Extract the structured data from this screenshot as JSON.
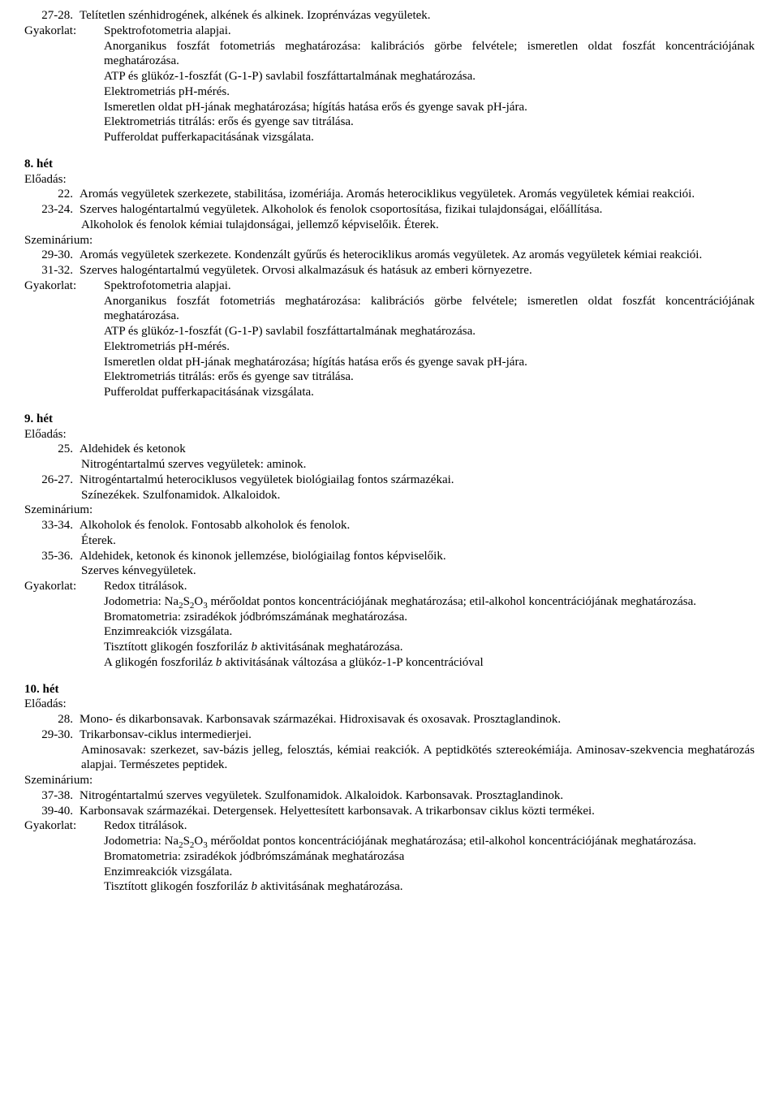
{
  "top": {
    "n27_28": "27-28.",
    "t27_28": "Telítetlen szénhidrogének, alkének és alkinek. Izoprénvázas vegyületek.",
    "gyak_label": "Gyakorlat:",
    "g1": "Spektrofotometria alapjai.",
    "g2": "Anorganikus foszfát fotometriás meghatározása: kalibrációs görbe felvétele; ismeretlen oldat foszfát koncentrációjának meghatározása.",
    "g3": "ATP és glükóz-1-foszfát (G-1-P) savlabil foszfáttartalmának meghatározása.",
    "g4": "Elektrometriás pH-mérés.",
    "g5": "Ismeretlen oldat pH-jának meghatározása; hígítás hatása erős és gyenge savak pH-jára.",
    "g6": "Elektrometriás titrálás: erős és gyenge sav titrálása.",
    "g7": "Pufferoldat pufferkapacitásának vizsgálata."
  },
  "w8": {
    "title": "8. hét",
    "eloadas": "Előadás:",
    "n22": "22.",
    "t22": "Aromás vegyületek szerkezete, stabilitása, izomériája. Aromás heterociklikus vegyületek. Aromás vegyületek kémiai reakciói.",
    "n23_24": "23-24.",
    "t23_24a": "Szerves halogéntartalmú vegyületek. Alkoholok és fenolok csoportosítása, fizikai tulajdonságai, előállítása.",
    "t23_24b": "Alkoholok és fenolok kémiai tulajdonságai, jellemző képviselőik. Éterek.",
    "szem": "Szeminárium:",
    "n29_30": "29-30.",
    "t29_30": "Aromás vegyületek szerkezete. Kondenzált gyűrűs és heterociklikus aromás vegyületek. Az aromás vegyületek kémiai reakciói.",
    "n31_32": "31-32.",
    "t31_32": "Szerves halogéntartalmú vegyületek. Orvosi alkalmazásuk és hatásuk az emberi környezetre.",
    "gyak_label": "Gyakorlat:",
    "g1": "Spektrofotometria alapjai.",
    "g2": "Anorganikus foszfát fotometriás meghatározása: kalibrációs görbe felvétele; ismeretlen oldat foszfát koncentrációjának meghatározása.",
    "g3": "ATP és glükóz-1-foszfát (G-1-P) savlabil foszfáttartalmának meghatározása.",
    "g4": "Elektrometriás pH-mérés.",
    "g5": "Ismeretlen oldat pH-jának meghatározása; hígítás hatása erős és gyenge savak pH-jára.",
    "g6": "Elektrometriás titrálás: erős és gyenge sav titrálása.",
    "g7": "Pufferoldat pufferkapacitásának vizsgálata."
  },
  "w9": {
    "title": "9. hét",
    "eloadas": "Előadás:",
    "n25": "25.",
    "t25a": "Aldehidek és ketonok",
    "t25b": "Nitrogéntartalmú szerves vegyületek: aminok.",
    "n26_27": "26-27.",
    "t26_27a": "Nitrogéntartalmú heterociklusos vegyületek biológiailag fontos származékai.",
    "t26_27b": "Színezékek. Szulfonamidok. Alkaloidok.",
    "szem": "Szeminárium:",
    "n33_34": "33-34.",
    "t33_34a": "Alkoholok és fenolok. Fontosabb alkoholok és fenolok.",
    "t33_34b": "Éterek.",
    "n35_36": "35-36.",
    "t35_36a": "Aldehidek, ketonok és kinonok jellemzése, biológiailag fontos képviselőik.",
    "t35_36b": "Szerves kénvegyületek.",
    "gyak_label": "Gyakorlat:",
    "g1": "Redox titrálások.",
    "g2a": "Jodometria: Na",
    "g2b": "S",
    "g2c": "O",
    "g2d": " mérőoldat pontos koncentrációjának meghatározása; etil-alkohol koncentrációjának meghatározása.",
    "g3": "Bromatometria: zsiradékok jódbrómszámának meghatározása.",
    "g4": "Enzimreakciók vizsgálata.",
    "g5a": "Tisztított glikogén foszforiláz ",
    "g5b": "b",
    "g5c": " aktivitásának meghatározása.",
    "g6a": "A glikogén foszforiláz ",
    "g6b": "b",
    "g6c": " aktivitásának változása a glükóz-1-P koncentrációval"
  },
  "w10": {
    "title": "10. hét",
    "eloadas": "Előadás:",
    "n28": "28.",
    "t28": "Mono- és dikarbonsavak. Karbonsavak származékai. Hidroxisavak és oxosavak. Prosztaglandinok.",
    "n29_30": "29-30.",
    "t29_30a": "Trikarbonsav-ciklus intermedierjei.",
    "t29_30b": "Aminosavak: szerkezet, sav-bázis jelleg, felosztás, kémiai reakciók. A peptidkötés sztereokémiája. Aminosav-szekvencia meghatározás alapjai. Természetes peptidek.",
    "szem": "Szeminárium:",
    "n37_38": "37-38.",
    "t37_38": "Nitrogéntartalmú szerves vegyületek. Szulfonamidok. Alkaloidok. Karbonsavak. Prosztaglandinok.",
    "n39_40": "39-40.",
    "t39_40": "Karbonsavak származékai. Detergensek. Helyettesített karbonsavak. A trikarbonsav ciklus közti termékei.",
    "gyak_label": "Gyakorlat:",
    "g1": "Redox titrálások.",
    "g2a": "Jodometria: Na",
    "g2b": "S",
    "g2c": "O",
    "g2d": " mérőoldat pontos koncentrációjának meghatározása; etil-alkohol koncentrációjának meghatározása.",
    "g3": "Bromatometria: zsiradékok jódbrómszámának meghatározása",
    "g4": "Enzimreakciók vizsgálata.",
    "g5a": "Tisztított glikogén foszforiláz ",
    "g5b": "b",
    "g5c": " aktivitásának meghatározása."
  }
}
